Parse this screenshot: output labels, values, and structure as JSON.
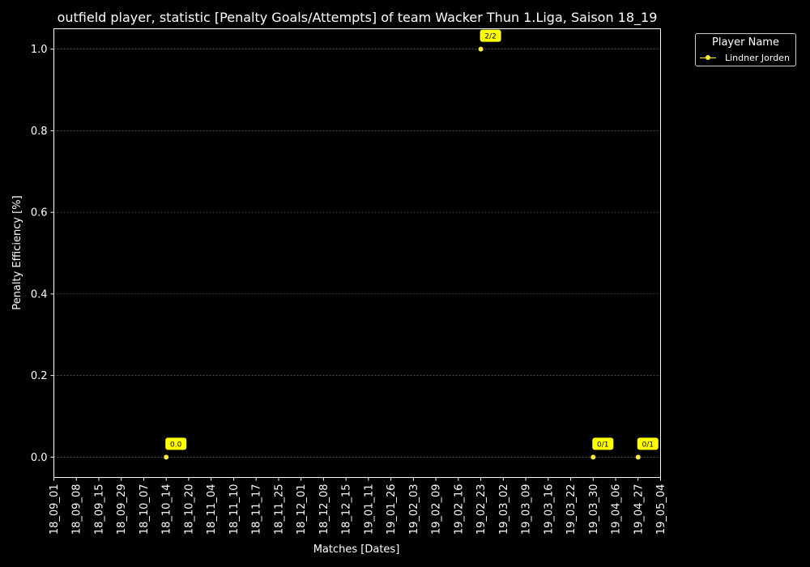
{
  "colors": {
    "background": "#000000",
    "axes": "#ffffff",
    "grid": "#7f7f7f",
    "series": "#ffeb3b",
    "annotation_bg": "#ffff00",
    "annotation_text": "#000000"
  },
  "chart_data": {
    "type": "line",
    "title": "outfield player, statistic [Penalty Goals/Attempts] of team Wacker Thun 1.Liga, Saison 18_19",
    "xlabel": "Matches [Dates]",
    "ylabel": "Penalty Efficiency [%]",
    "ylim": [
      -0.05,
      1.05
    ],
    "yticks": [
      0.0,
      0.2,
      0.4,
      0.6,
      0.8,
      1.0
    ],
    "ytick_labels": [
      "0.0",
      "0.2",
      "0.4",
      "0.6",
      "0.8",
      "1.0"
    ],
    "categories": [
      "18_09_01",
      "18_09_08",
      "18_09_15",
      "18_09_29",
      "18_10_07",
      "18_10_14",
      "18_10_20",
      "18_11_04",
      "18_11_10",
      "18_11_17",
      "18_11_25",
      "18_12_01",
      "18_12_08",
      "18_12_15",
      "19_01_11",
      "19_01_26",
      "19_02_03",
      "19_02_09",
      "19_02_16",
      "19_02_23",
      "19_03_02",
      "19_03_09",
      "19_03_16",
      "19_03_22",
      "19_03_30",
      "19_04_06",
      "19_04_27",
      "19_05_04"
    ],
    "grid": "horizontal dashed",
    "legend": {
      "title": "Player Name",
      "position": "outside top-right"
    },
    "series": [
      {
        "name": "Lindner Jorden",
        "points": [
          {
            "x": "18_10_14",
            "y": 0.0,
            "label": "0.0"
          },
          {
            "x": "19_02_23",
            "y": 1.0,
            "label": "2/2"
          },
          {
            "x": "19_03_30",
            "y": 0.0,
            "label": "0/1"
          },
          {
            "x": "19_04_27",
            "y": 0.0,
            "label": "0/1"
          }
        ]
      }
    ]
  }
}
